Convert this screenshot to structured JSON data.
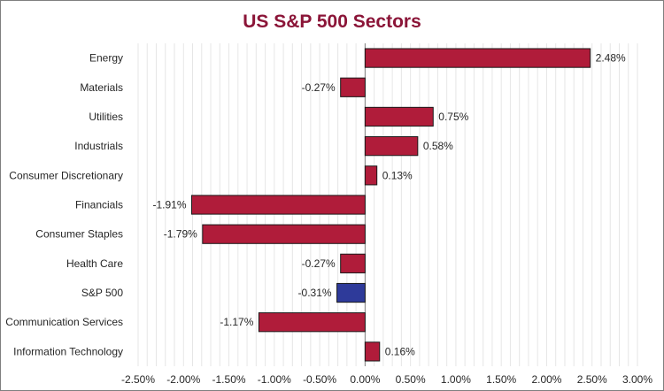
{
  "chart_data": {
    "type": "bar",
    "orientation": "horizontal",
    "title": "US S&P 500 Sectors",
    "categories": [
      "Energy",
      "Materials",
      "Utilities",
      "Industrials",
      "Consumer Discretionary",
      "Financials",
      "Consumer Staples",
      "Health Care",
      "S&P 500",
      "Communication Services",
      "Information Technology"
    ],
    "values": [
      2.48,
      -0.27,
      0.75,
      0.58,
      0.13,
      -1.91,
      -1.79,
      -0.27,
      -0.31,
      -1.17,
      0.16
    ],
    "data_labels": [
      "2.48%",
      "-0.27%",
      "0.75%",
      "0.58%",
      "0.13%",
      "-1.91%",
      "-1.79%",
      "-0.27%",
      "-0.31%",
      "-1.17%",
      "0.16%"
    ],
    "highlight_category": "S&P 500",
    "xlim": [
      -2.5,
      3.0
    ],
    "x_ticks": [
      "-2.50%",
      "-2.00%",
      "-1.50%",
      "-1.00%",
      "-0.50%",
      "0.00%",
      "0.50%",
      "1.00%",
      "1.50%",
      "2.00%",
      "2.50%",
      "3.00%"
    ],
    "grid": "vertical",
    "legend": "none",
    "colors": {
      "title": "#8b1538",
      "bar": "#b01c3a",
      "highlight_bar": "#2e3a9a",
      "bar_outline": "#1a1a1a",
      "grid": "#e6e6e6",
      "zero_line": "#808080"
    }
  }
}
